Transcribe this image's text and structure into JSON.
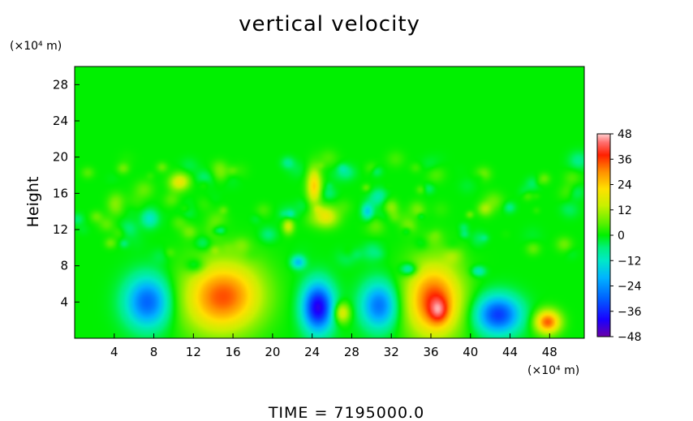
{
  "chart_data": {
    "type": "heatmap",
    "title": "vertical velocity",
    "ylabel": "Height",
    "y_unit": "(×10⁴ m)",
    "x_unit": "(×10⁴ m)",
    "footer": "TIME = 7195000.0",
    "xlim": [
      0,
      51.5
    ],
    "ylim": [
      0,
      30
    ],
    "x_ticks": [
      4,
      8,
      12,
      16,
      20,
      24,
      28,
      32,
      36,
      40,
      44,
      48
    ],
    "y_ticks": [
      4,
      8,
      12,
      16,
      20,
      24,
      28
    ],
    "colorbar": {
      "ticks": [
        48,
        36,
        24,
        12,
        0,
        -12,
        -24,
        -36,
        -48
      ],
      "range": [
        -48,
        48
      ],
      "stops": [
        {
          "v": -48,
          "c": "#6a00a8"
        },
        {
          "v": -40,
          "c": "#1a00ff"
        },
        {
          "v": -30,
          "c": "#0060ff"
        },
        {
          "v": -20,
          "c": "#00b4ff"
        },
        {
          "v": -12,
          "c": "#00e8c8"
        },
        {
          "v": -6,
          "c": "#00f080"
        },
        {
          "v": 0,
          "c": "#00f000"
        },
        {
          "v": 6,
          "c": "#60f000"
        },
        {
          "v": 14,
          "c": "#c8f000"
        },
        {
          "v": 22,
          "c": "#ffe000"
        },
        {
          "v": 30,
          "c": "#ff9000"
        },
        {
          "v": 38,
          "c": "#ff2000"
        },
        {
          "v": 44,
          "c": "#ff7070"
        },
        {
          "v": 48,
          "c": "#ffd0d0"
        }
      ]
    },
    "features": [
      {
        "x": 7.4,
        "y": 4.0,
        "sx": 1.6,
        "sy": 2.0,
        "amp": -30
      },
      {
        "x": 14.5,
        "y": 4.5,
        "sx": 2.6,
        "sy": 2.8,
        "amp": 30
      },
      {
        "x": 17.0,
        "y": 5.0,
        "sx": 2.2,
        "sy": 2.6,
        "amp": 8
      },
      {
        "x": 24.6,
        "y": 3.4,
        "sx": 1.1,
        "sy": 1.9,
        "amp": -42
      },
      {
        "x": 27.0,
        "y": 2.8,
        "sx": 0.6,
        "sy": 0.8,
        "amp": 20
      },
      {
        "x": 30.8,
        "y": 3.6,
        "sx": 1.3,
        "sy": 1.8,
        "amp": -28
      },
      {
        "x": 36.3,
        "y": 4.2,
        "sx": 2.0,
        "sy": 2.9,
        "amp": 36
      },
      {
        "x": 36.8,
        "y": 3.0,
        "sx": 0.7,
        "sy": 1.0,
        "amp": 14
      },
      {
        "x": 42.8,
        "y": 2.6,
        "sx": 1.6,
        "sy": 1.5,
        "amp": -34
      },
      {
        "x": 47.8,
        "y": 1.8,
        "sx": 0.9,
        "sy": 0.9,
        "amp": 34
      },
      {
        "x": 24.2,
        "y": 16.8,
        "sx": 0.5,
        "sy": 1.4,
        "amp": 24
      },
      {
        "x": 25.4,
        "y": 13.4,
        "sx": 0.9,
        "sy": 0.8,
        "amp": 18
      },
      {
        "x": 21.6,
        "y": 12.4,
        "sx": 0.4,
        "sy": 0.6,
        "amp": 16
      },
      {
        "x": 10.6,
        "y": 17.2,
        "sx": 0.7,
        "sy": 0.6,
        "amp": 14
      },
      {
        "x": 4.2,
        "y": 14.8,
        "sx": 0.6,
        "sy": 0.8,
        "amp": 10
      },
      {
        "x": 7.6,
        "y": 13.2,
        "sx": 0.6,
        "sy": 0.7,
        "amp": -12
      },
      {
        "x": 29.6,
        "y": 14.0,
        "sx": 0.4,
        "sy": 0.6,
        "amp": -16
      },
      {
        "x": 32.0,
        "y": 14.4,
        "sx": 0.5,
        "sy": 0.6,
        "amp": 10
      },
      {
        "x": 33.8,
        "y": 7.6,
        "sx": 0.6,
        "sy": 0.5,
        "amp": -16
      },
      {
        "x": 22.6,
        "y": 8.4,
        "sx": 0.5,
        "sy": 0.5,
        "amp": -18
      },
      {
        "x": 40.8,
        "y": 7.4,
        "sx": 0.5,
        "sy": 0.4,
        "amp": -12
      },
      {
        "x": 12.2,
        "y": 8.0,
        "sx": 0.7,
        "sy": 0.6,
        "amp": -10
      }
    ]
  }
}
